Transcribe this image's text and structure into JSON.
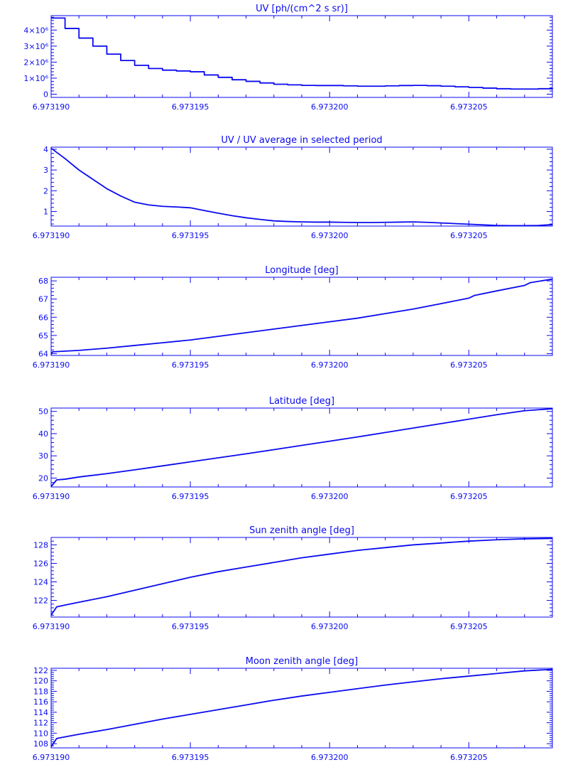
{
  "style": {
    "line_color": "#0a0af0",
    "background": "#ffffff"
  },
  "chart_data": [
    {
      "type": "line",
      "title": "UV [ph/(cm^2 s sr)]",
      "xlabel": "",
      "ylabel": "",
      "xlim": [
        6.97319,
        6.973208
      ],
      "ylim": [
        -200000,
        4900000
      ],
      "xticks": [
        6.97319,
        6.973195,
        6.9732,
        6.973205
      ],
      "xtick_labels": [
        "6.973190",
        "6.973195",
        "6.973200",
        "6.973205"
      ],
      "yticks": [
        0,
        1000000,
        2000000,
        3000000,
        4000000
      ],
      "ytick_labels": [
        "0",
        "1×10⁶",
        "2×10⁶",
        "3×10⁶",
        "4×10⁶"
      ],
      "step": true,
      "series": [
        {
          "x": [
            6.97319,
            6.9731905,
            6.973191,
            6.9731915,
            6.973192,
            6.9731925,
            6.973193,
            6.9731935,
            6.973194,
            6.9731945,
            6.973195,
            6.9731955,
            6.973196,
            6.9731965,
            6.973197,
            6.9731975,
            6.973198,
            6.9731985,
            6.973199,
            6.9731995,
            6.9732,
            6.9732005,
            6.973201,
            6.9732015,
            6.973202,
            6.9732025,
            6.973203,
            6.9732035,
            6.973204,
            6.9732045,
            6.973205,
            6.9732055,
            6.973206,
            6.9732065,
            6.973207,
            6.9732075,
            6.973208
          ],
          "y": [
            4750000,
            4100000,
            3500000,
            3000000,
            2500000,
            2100000,
            1800000,
            1600000,
            1500000,
            1450000,
            1400000,
            1200000,
            1050000,
            900000,
            800000,
            700000,
            620000,
            580000,
            550000,
            540000,
            540000,
            520000,
            500000,
            500000,
            520000,
            540000,
            550000,
            530000,
            500000,
            460000,
            420000,
            380000,
            340000,
            320000,
            320000,
            340000,
            380000
          ]
        }
      ]
    },
    {
      "type": "line",
      "title": "UV / UV average in selected period",
      "xlabel": "",
      "ylabel": "",
      "xlim": [
        6.97319,
        6.973208
      ],
      "ylim": [
        0.3,
        4.1
      ],
      "xticks": [
        6.97319,
        6.973195,
        6.9732,
        6.973205
      ],
      "xtick_labels": [
        "6.973190",
        "6.973195",
        "6.973200",
        "6.973205"
      ],
      "yticks": [
        1,
        2,
        3,
        4
      ],
      "ytick_labels": [
        "1",
        "2",
        "3",
        "4"
      ],
      "step": false,
      "series": [
        {
          "x": [
            6.97319,
            6.9731905,
            6.973191,
            6.9731915,
            6.973192,
            6.9731925,
            6.973193,
            6.9731935,
            6.973194,
            6.9731945,
            6.973195,
            6.9731955,
            6.973196,
            6.9731965,
            6.973197,
            6.9731975,
            6.973198,
            6.9731985,
            6.973199,
            6.9731995,
            6.9732,
            6.9732005,
            6.973201,
            6.9732015,
            6.973202,
            6.9732025,
            6.973203,
            6.9732035,
            6.973204,
            6.9732045,
            6.973205,
            6.9732055,
            6.973206,
            6.9732065,
            6.973207,
            6.9732075,
            6.973208
          ],
          "y": [
            4.05,
            3.55,
            3.0,
            2.55,
            2.1,
            1.75,
            1.45,
            1.32,
            1.25,
            1.22,
            1.18,
            1.05,
            0.92,
            0.8,
            0.7,
            0.62,
            0.55,
            0.52,
            0.5,
            0.49,
            0.49,
            0.48,
            0.47,
            0.47,
            0.48,
            0.49,
            0.5,
            0.48,
            0.45,
            0.42,
            0.39,
            0.36,
            0.33,
            0.32,
            0.32,
            0.33,
            0.37
          ]
        }
      ]
    },
    {
      "type": "line",
      "title": "Longitude [deg]",
      "xlabel": "",
      "ylabel": "",
      "xlim": [
        6.97319,
        6.973208
      ],
      "ylim": [
        63.9,
        68.2
      ],
      "xticks": [
        6.97319,
        6.973195,
        6.9732,
        6.973205
      ],
      "xtick_labels": [
        "6.973190",
        "6.973195",
        "6.973200",
        "6.973205"
      ],
      "yticks": [
        64,
        65,
        66,
        67,
        68
      ],
      "ytick_labels": [
        "64",
        "65",
        "66",
        "67",
        "68"
      ],
      "step": false,
      "series": [
        {
          "x": [
            6.97319,
            6.97319005,
            6.973191,
            6.973192,
            6.973193,
            6.973194,
            6.973195,
            6.973196,
            6.973197,
            6.973198,
            6.973199,
            6.9732,
            6.973201,
            6.973202,
            6.973203,
            6.973204,
            6.973205,
            6.9732052,
            6.973206,
            6.973207,
            6.9732072,
            6.973208
          ],
          "y": [
            63.95,
            64.1,
            64.18,
            64.3,
            64.45,
            64.6,
            64.75,
            64.95,
            65.15,
            65.35,
            65.55,
            65.75,
            65.95,
            66.2,
            66.45,
            66.75,
            67.05,
            67.2,
            67.45,
            67.75,
            67.9,
            68.1
          ]
        }
      ]
    },
    {
      "type": "line",
      "title": "Latitude [deg]",
      "xlabel": "",
      "ylabel": "",
      "xlim": [
        6.97319,
        6.973208
      ],
      "ylim": [
        16,
        51.5
      ],
      "xticks": [
        6.97319,
        6.973195,
        6.9732,
        6.973205
      ],
      "xtick_labels": [
        "6.973190",
        "6.973195",
        "6.973200",
        "6.973205"
      ],
      "yticks": [
        20,
        30,
        40,
        50
      ],
      "ytick_labels": [
        "20",
        "30",
        "40",
        "50"
      ],
      "step": false,
      "series": [
        {
          "x": [
            6.97319,
            6.9731902,
            6.9731905,
            6.973191,
            6.973192,
            6.973193,
            6.973194,
            6.973195,
            6.973196,
            6.973197,
            6.973198,
            6.973199,
            6.9732,
            6.973201,
            6.973202,
            6.973203,
            6.973204,
            6.973205,
            6.973206,
            6.973207,
            6.973208
          ],
          "y": [
            16.2,
            19.2,
            19.5,
            20.5,
            22.0,
            23.7,
            25.5,
            27.3,
            29.1,
            30.9,
            32.8,
            34.7,
            36.6,
            38.5,
            40.5,
            42.5,
            44.5,
            46.5,
            48.5,
            50.3,
            51.2
          ]
        }
      ]
    },
    {
      "type": "line",
      "title": "Sun zenith angle [deg]",
      "xlabel": "",
      "ylabel": "",
      "xlim": [
        6.97319,
        6.973208
      ],
      "ylim": [
        120.2,
        128.8
      ],
      "xticks": [
        6.97319,
        6.973195,
        6.9732,
        6.973205
      ],
      "xtick_labels": [
        "6.973190",
        "6.973195",
        "6.973200",
        "6.973205"
      ],
      "yticks": [
        122,
        124,
        126,
        128
      ],
      "ytick_labels": [
        "122",
        "124",
        "126",
        "128"
      ],
      "step": false,
      "series": [
        {
          "x": [
            6.97319,
            6.9731902,
            6.9731905,
            6.973191,
            6.973192,
            6.973193,
            6.973194,
            6.973195,
            6.973196,
            6.973197,
            6.973198,
            6.973199,
            6.9732,
            6.973201,
            6.973202,
            6.973203,
            6.973204,
            6.973205,
            6.973206,
            6.973207,
            6.973208
          ],
          "y": [
            120.4,
            121.3,
            121.5,
            121.8,
            122.4,
            123.1,
            123.8,
            124.5,
            125.1,
            125.6,
            126.1,
            126.6,
            127.0,
            127.4,
            127.7,
            128.0,
            128.2,
            128.4,
            128.55,
            128.65,
            128.7
          ]
        }
      ]
    },
    {
      "type": "line",
      "title": "Moon zenith angle [deg]",
      "xlabel": "",
      "ylabel": "",
      "xlim": [
        6.97319,
        6.973208
      ],
      "ylim": [
        107.2,
        122.4
      ],
      "xticks": [
        6.97319,
        6.973195,
        6.9732,
        6.973205
      ],
      "xtick_labels": [
        "6.973190",
        "6.973195",
        "6.973200",
        "6.973205"
      ],
      "yticks": [
        108,
        110,
        112,
        114,
        116,
        118,
        120,
        122
      ],
      "ytick_labels": [
        "108",
        "110",
        "112",
        "114",
        "116",
        "118",
        "120",
        "122"
      ],
      "step": false,
      "series": [
        {
          "x": [
            6.97319,
            6.9731902,
            6.9731905,
            6.973191,
            6.973192,
            6.973193,
            6.973194,
            6.973195,
            6.973196,
            6.973197,
            6.973198,
            6.973199,
            6.9732,
            6.973201,
            6.973202,
            6.973203,
            6.973204,
            6.973205,
            6.973206,
            6.973207,
            6.973208
          ],
          "y": [
            107.4,
            109.0,
            109.3,
            109.8,
            110.7,
            111.7,
            112.7,
            113.6,
            114.5,
            115.4,
            116.3,
            117.1,
            117.8,
            118.5,
            119.2,
            119.8,
            120.4,
            120.9,
            121.4,
            121.9,
            122.2
          ]
        }
      ]
    }
  ]
}
